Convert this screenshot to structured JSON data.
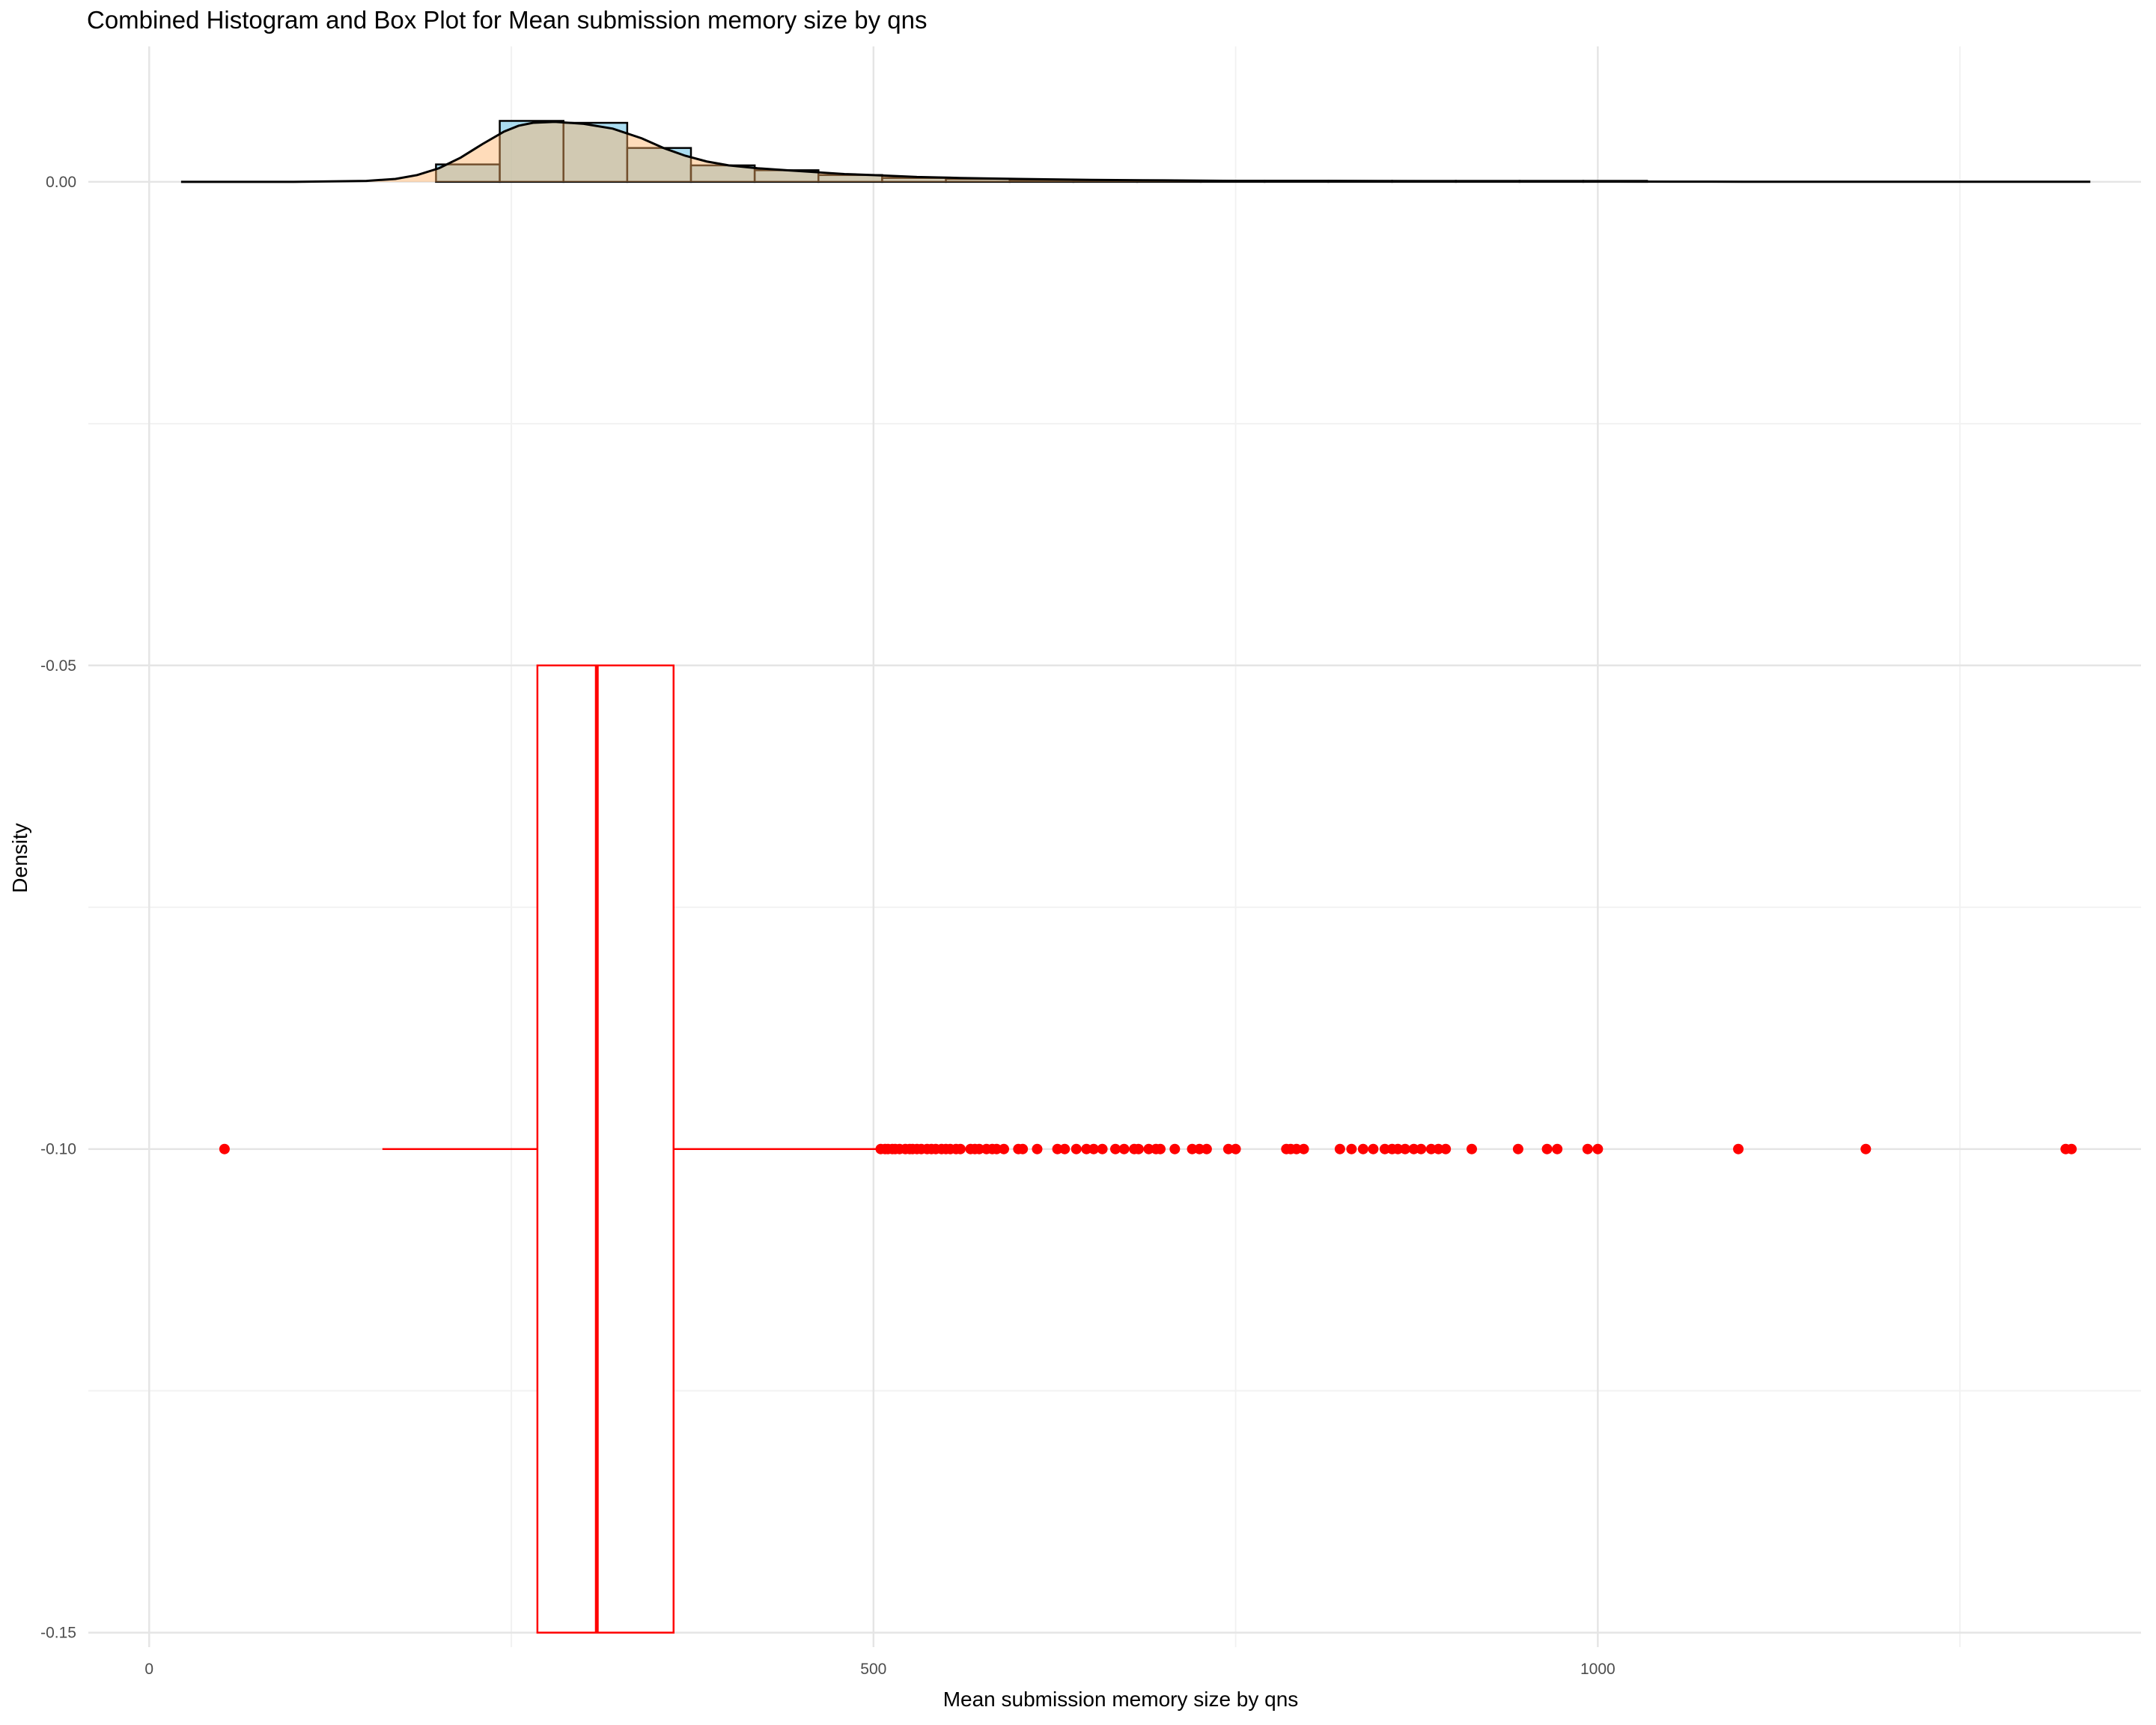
{
  "chart_data": {
    "type": "histogram_with_density_and_boxplot",
    "title": "Combined Histogram and Box Plot for Mean submission memory size by qns",
    "xlabel": "Mean submission memory size by qns",
    "ylabel": "Density",
    "xlim": [
      -42,
      1375
    ],
    "ylim": [
      -0.1515,
      0.014
    ],
    "x_ticks": [
      0,
      500,
      1000
    ],
    "x_tick_labels": [
      "0",
      "500",
      "1000"
    ],
    "y_ticks": [
      0.0,
      -0.05,
      -0.1,
      -0.15
    ],
    "y_tick_labels": [
      "0.00",
      "-0.05",
      "-0.10",
      "-0.15"
    ],
    "grid": true,
    "colors": {
      "histogram_fill": "#87CEEB",
      "histogram_stroke": "#000000",
      "density_fill": "#FFB266",
      "overlap_fill": "#B9C2A8",
      "density_line": "#000000",
      "boxplot": "#FF0000",
      "grid_major": "#E5E5E5",
      "grid_minor": "#F2F2F2"
    },
    "histogram": {
      "bin_edges": [
        198,
        242,
        286,
        330,
        374,
        418,
        462,
        506,
        550,
        594,
        638,
        682,
        726,
        770,
        814,
        858,
        902,
        946,
        990,
        1034,
        1078,
        1122,
        1166,
        1210,
        1254,
        1298,
        1342
      ],
      "densities": [
        0.0018,
        0.0063,
        0.0061,
        0.0035,
        0.0017,
        0.0012,
        0.0007,
        0.0004,
        0.0003,
        0.0002,
        0.0001,
        0.0001,
        0.0001,
        0.0001,
        0.0001,
        0.0001,
        0.0001,
        0.0001,
        0.0001,
        0.0,
        0.0,
        0.0,
        0.0,
        0.0,
        0.0,
        0.0
      ]
    },
    "density_curve": {
      "x": [
        22,
        100,
        150,
        170,
        185,
        200,
        215,
        230,
        245,
        255,
        265,
        280,
        300,
        320,
        340,
        355,
        370,
        385,
        400,
        420,
        440,
        460,
        480,
        500,
        530,
        560,
        600,
        650,
        700,
        750,
        800,
        850,
        900,
        950,
        1000,
        1050,
        1100,
        1150,
        1200,
        1250,
        1300,
        1340
      ],
      "y": [
        0.0,
        0.0,
        0.0001,
        0.0003,
        0.0007,
        0.0014,
        0.0025,
        0.0039,
        0.0052,
        0.0058,
        0.0061,
        0.0062,
        0.006,
        0.0055,
        0.0045,
        0.0035,
        0.0027,
        0.0021,
        0.0017,
        0.0014,
        0.0012,
        0.001,
        0.0008,
        0.0007,
        0.0005,
        0.0004,
        0.0003,
        0.0002,
        0.00015,
        0.0001,
        0.0001,
        8e-05,
        6e-05,
        4e-05,
        3e-05,
        2e-05,
        1e-05,
        1e-05,
        1e-05,
        1e-05,
        1e-05,
        1e-05
      ]
    },
    "boxplot": {
      "y_center": -0.1,
      "y_box_min": -0.15,
      "y_box_max": -0.05,
      "q1": 268,
      "median": 309,
      "q3": 362,
      "whisker_low": 161,
      "whisker_high": 505,
      "outliers": [
        52,
        505,
        508,
        510,
        513,
        515,
        518,
        522,
        525,
        527,
        530,
        533,
        537,
        540,
        543,
        547,
        550,
        553,
        557,
        560,
        567,
        570,
        573,
        578,
        582,
        585,
        590,
        600,
        603,
        613,
        627,
        632,
        640,
        647,
        652,
        658,
        667,
        673,
        680,
        683,
        690,
        695,
        698,
        708,
        720,
        725,
        730,
        745,
        750,
        785,
        788,
        792,
        797,
        822,
        830,
        838,
        845,
        853,
        858,
        862,
        867,
        873,
        878,
        885,
        890,
        895,
        913,
        945,
        965,
        972,
        993,
        1000,
        1097,
        1185,
        1323,
        1327
      ]
    }
  }
}
